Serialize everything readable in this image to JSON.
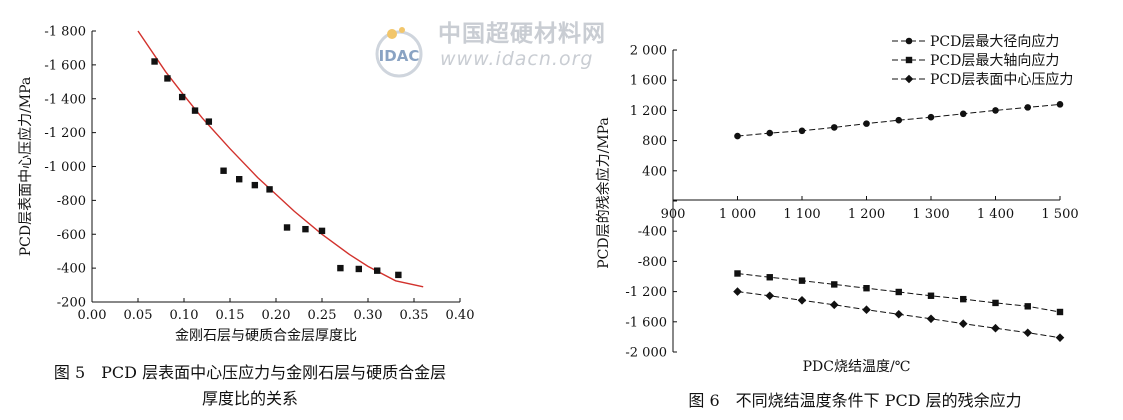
{
  "watermark": {
    "logo_text": "IDAC",
    "cn_name": "中国超硬材料网",
    "url": "www.idacn.org"
  },
  "figure5": {
    "caption_line1": "图 5　PCD 层表面中心压应力与金刚石层与硬质合金层",
    "caption_line2": "厚度比的关系"
  },
  "figure6": {
    "caption": "图 6　不同烧结温度条件下 PCD 层的残余应力"
  },
  "chart_data": [
    {
      "type": "scatter",
      "xlabel": "金刚石层与硬质合金层厚度比",
      "ylabel": "PCD层表面中心压应力/MPa",
      "xlim": [
        0.0,
        0.4
      ],
      "ylim": [
        -200,
        -1800
      ],
      "x_ticks": [
        "0.00",
        "0.05",
        "0.10",
        "0.15",
        "0.20",
        "0.25",
        "0.30",
        "0.35",
        "0.40"
      ],
      "y_ticks": [
        "-1 800",
        "-1 600",
        "-1 400",
        "-1 200",
        "-1 000",
        "-800",
        "-600",
        "-400",
        "-200"
      ],
      "grid": false,
      "colors": {
        "points": "#111111",
        "fit": "#d2322d"
      },
      "points": [
        {
          "x": 0.068,
          "y": -1620
        },
        {
          "x": 0.082,
          "y": -1520
        },
        {
          "x": 0.098,
          "y": -1410
        },
        {
          "x": 0.112,
          "y": -1330
        },
        {
          "x": 0.127,
          "y": -1265
        },
        {
          "x": 0.143,
          "y": -975
        },
        {
          "x": 0.16,
          "y": -925
        },
        {
          "x": 0.177,
          "y": -890
        },
        {
          "x": 0.193,
          "y": -865
        },
        {
          "x": 0.212,
          "y": -640
        },
        {
          "x": 0.232,
          "y": -630
        },
        {
          "x": 0.25,
          "y": -620
        },
        {
          "x": 0.27,
          "y": -400
        },
        {
          "x": 0.29,
          "y": -395
        },
        {
          "x": 0.31,
          "y": -385
        },
        {
          "x": 0.333,
          "y": -360
        }
      ],
      "fit_curve": [
        {
          "x": 0.05,
          "y": -1800
        },
        {
          "x": 0.08,
          "y": -1560
        },
        {
          "x": 0.1,
          "y": -1420
        },
        {
          "x": 0.12,
          "y": -1285
        },
        {
          "x": 0.15,
          "y": -1105
        },
        {
          "x": 0.18,
          "y": -935
        },
        {
          "x": 0.2,
          "y": -835
        },
        {
          "x": 0.22,
          "y": -735
        },
        {
          "x": 0.25,
          "y": -600
        },
        {
          "x": 0.28,
          "y": -480
        },
        {
          "x": 0.3,
          "y": -410
        },
        {
          "x": 0.33,
          "y": -325
        },
        {
          "x": 0.36,
          "y": -290
        }
      ]
    },
    {
      "type": "line",
      "xlabel": "PDC烧结温度/℃",
      "ylabel": "PCD层的残余应力/MPa",
      "xlim": [
        900,
        1500
      ],
      "ylim": [
        -2000,
        2000
      ],
      "x_ticks": [
        "900",
        "1 000",
        "1 100",
        "1 200",
        "1 300",
        "1 400",
        "1 500"
      ],
      "y_ticks": [
        "2 000",
        "1 600",
        "1 200",
        "800",
        "400",
        "0",
        "-400",
        "-800",
        "-1 200",
        "-1 600",
        "-2 000"
      ],
      "grid": false,
      "legend": "top-right",
      "x": [
        1000,
        1050,
        1100,
        1150,
        1200,
        1250,
        1300,
        1350,
        1400,
        1450,
        1500
      ],
      "series": [
        {
          "name": "PCD层最大径向应力",
          "marker": "circle",
          "values": [
            860,
            900,
            930,
            975,
            1025,
            1070,
            1110,
            1155,
            1200,
            1240,
            1280
          ]
        },
        {
          "name": "PCD层最大轴向应力",
          "marker": "square",
          "values": [
            -960,
            -1010,
            -1055,
            -1105,
            -1155,
            -1205,
            -1255,
            -1300,
            -1350,
            -1395,
            -1470
          ]
        },
        {
          "name": "PCD层表面中心压应力",
          "marker": "diamond",
          "values": [
            -1200,
            -1255,
            -1315,
            -1375,
            -1440,
            -1500,
            -1560,
            -1625,
            -1685,
            -1745,
            -1810
          ]
        }
      ]
    }
  ]
}
